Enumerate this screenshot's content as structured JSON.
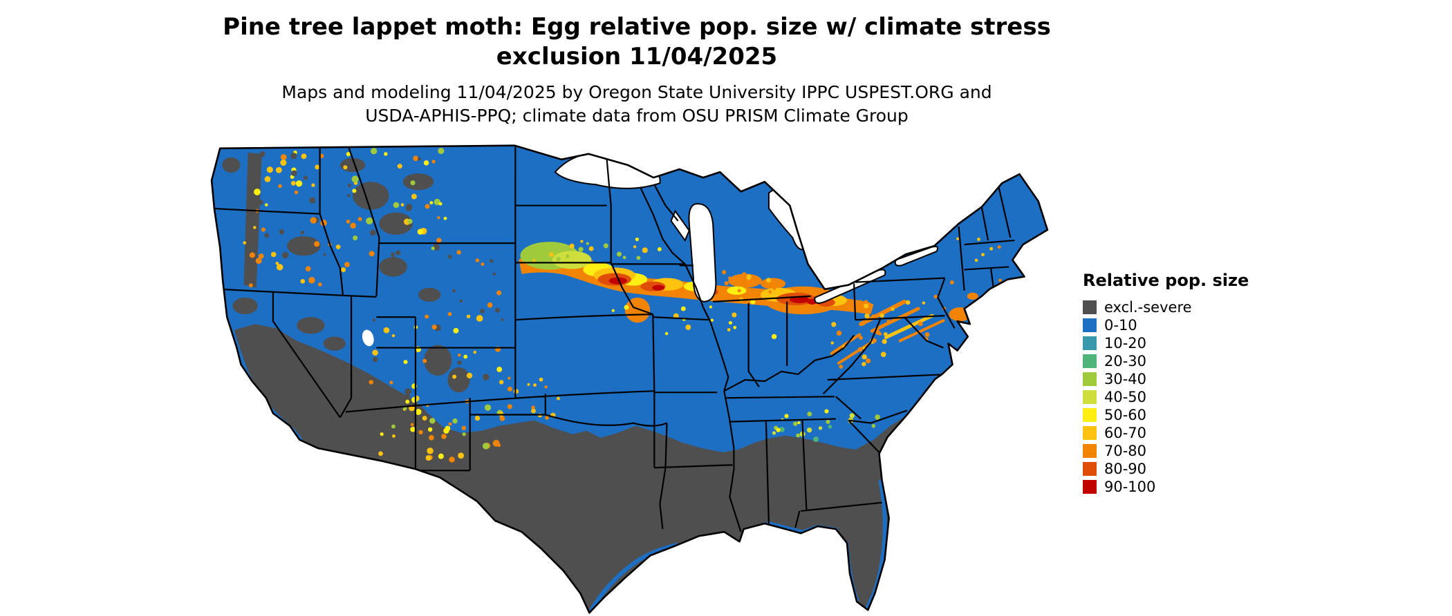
{
  "page": {
    "background": "#ffffff"
  },
  "header": {
    "title_line1": "Pine tree lappet moth: Egg relative pop. size w/ climate stress",
    "title_line2": "exclusion 11/04/2025",
    "subtitle_line1": "Maps and modeling 11/04/2025 by Oregon State University IPPC USPEST.ORG and",
    "subtitle_line2": "USDA-APHIS-PPQ; climate data from OSU PRISM Climate Group"
  },
  "legend": {
    "title": "Relative pop. size",
    "items": [
      {
        "key": "excl",
        "label": "excl.-severe",
        "color": "#4f4f4f"
      },
      {
        "key": "v0",
        "label": "0-10",
        "color": "#1d6fc4"
      },
      {
        "key": "v10",
        "label": "10-20",
        "color": "#3899ac"
      },
      {
        "key": "v20",
        "label": "20-30",
        "color": "#4fb477"
      },
      {
        "key": "v30",
        "label": "30-40",
        "color": "#a0c93c"
      },
      {
        "key": "v40",
        "label": "40-50",
        "color": "#cede3c"
      },
      {
        "key": "v50",
        "label": "50-60",
        "color": "#ffee12"
      },
      {
        "key": "v60",
        "label": "60-70",
        "color": "#ffc30f"
      },
      {
        "key": "v70",
        "label": "70-80",
        "color": "#f28405"
      },
      {
        "key": "v80",
        "label": "80-90",
        "color": "#e04d08"
      },
      {
        "key": "v90",
        "label": "90-100",
        "color": "#c20000"
      }
    ]
  },
  "map": {
    "region": "Continental United States",
    "water_color": "#ffffff",
    "state_border_color": "#000000"
  },
  "chart_data": {
    "type": "heatmap",
    "title": "Pine tree lappet moth: Egg relative pop. size w/ climate stress exclusion 11/04/2025",
    "subtitle": "Maps and modeling 11/04/2025 by Oregon State University IPPC USPEST.ORG and USDA-APHIS-PPQ; climate data from OSU PRISM Climate Group",
    "legend_title": "Relative pop. size",
    "classes": [
      "excl.-severe",
      "0-10",
      "10-20",
      "20-30",
      "30-40",
      "40-50",
      "50-60",
      "60-70",
      "70-80",
      "80-90",
      "90-100"
    ],
    "class_colors": [
      "#4f4f4f",
      "#1d6fc4",
      "#3899ac",
      "#4fb477",
      "#a0c93c",
      "#cede3c",
      "#ffee12",
      "#ffc30f",
      "#f28405",
      "#e04d08",
      "#c20000"
    ],
    "regions_summary": {
      "excluded_severe_stress": "California interior, Nevada, Arizona, New Mexico, southern and western Texas, Louisiana, Mississippi, Alabama, Georgia, Florida, South Carolina, and high western mountain ranges",
      "low_0_10": "Northern tier, Pacific Northwest lowlands, central and northern plains, upper Midwest, Appalachians, Northeast",
      "high_40_100_band": "East-west band from central South Dakota and Nebraska through Iowa, northern Missouri, Illinois, Indiana, Ohio, southern Michigan into Pennsylvania and New Jersey, with scattered high values in the interior West"
    }
  }
}
